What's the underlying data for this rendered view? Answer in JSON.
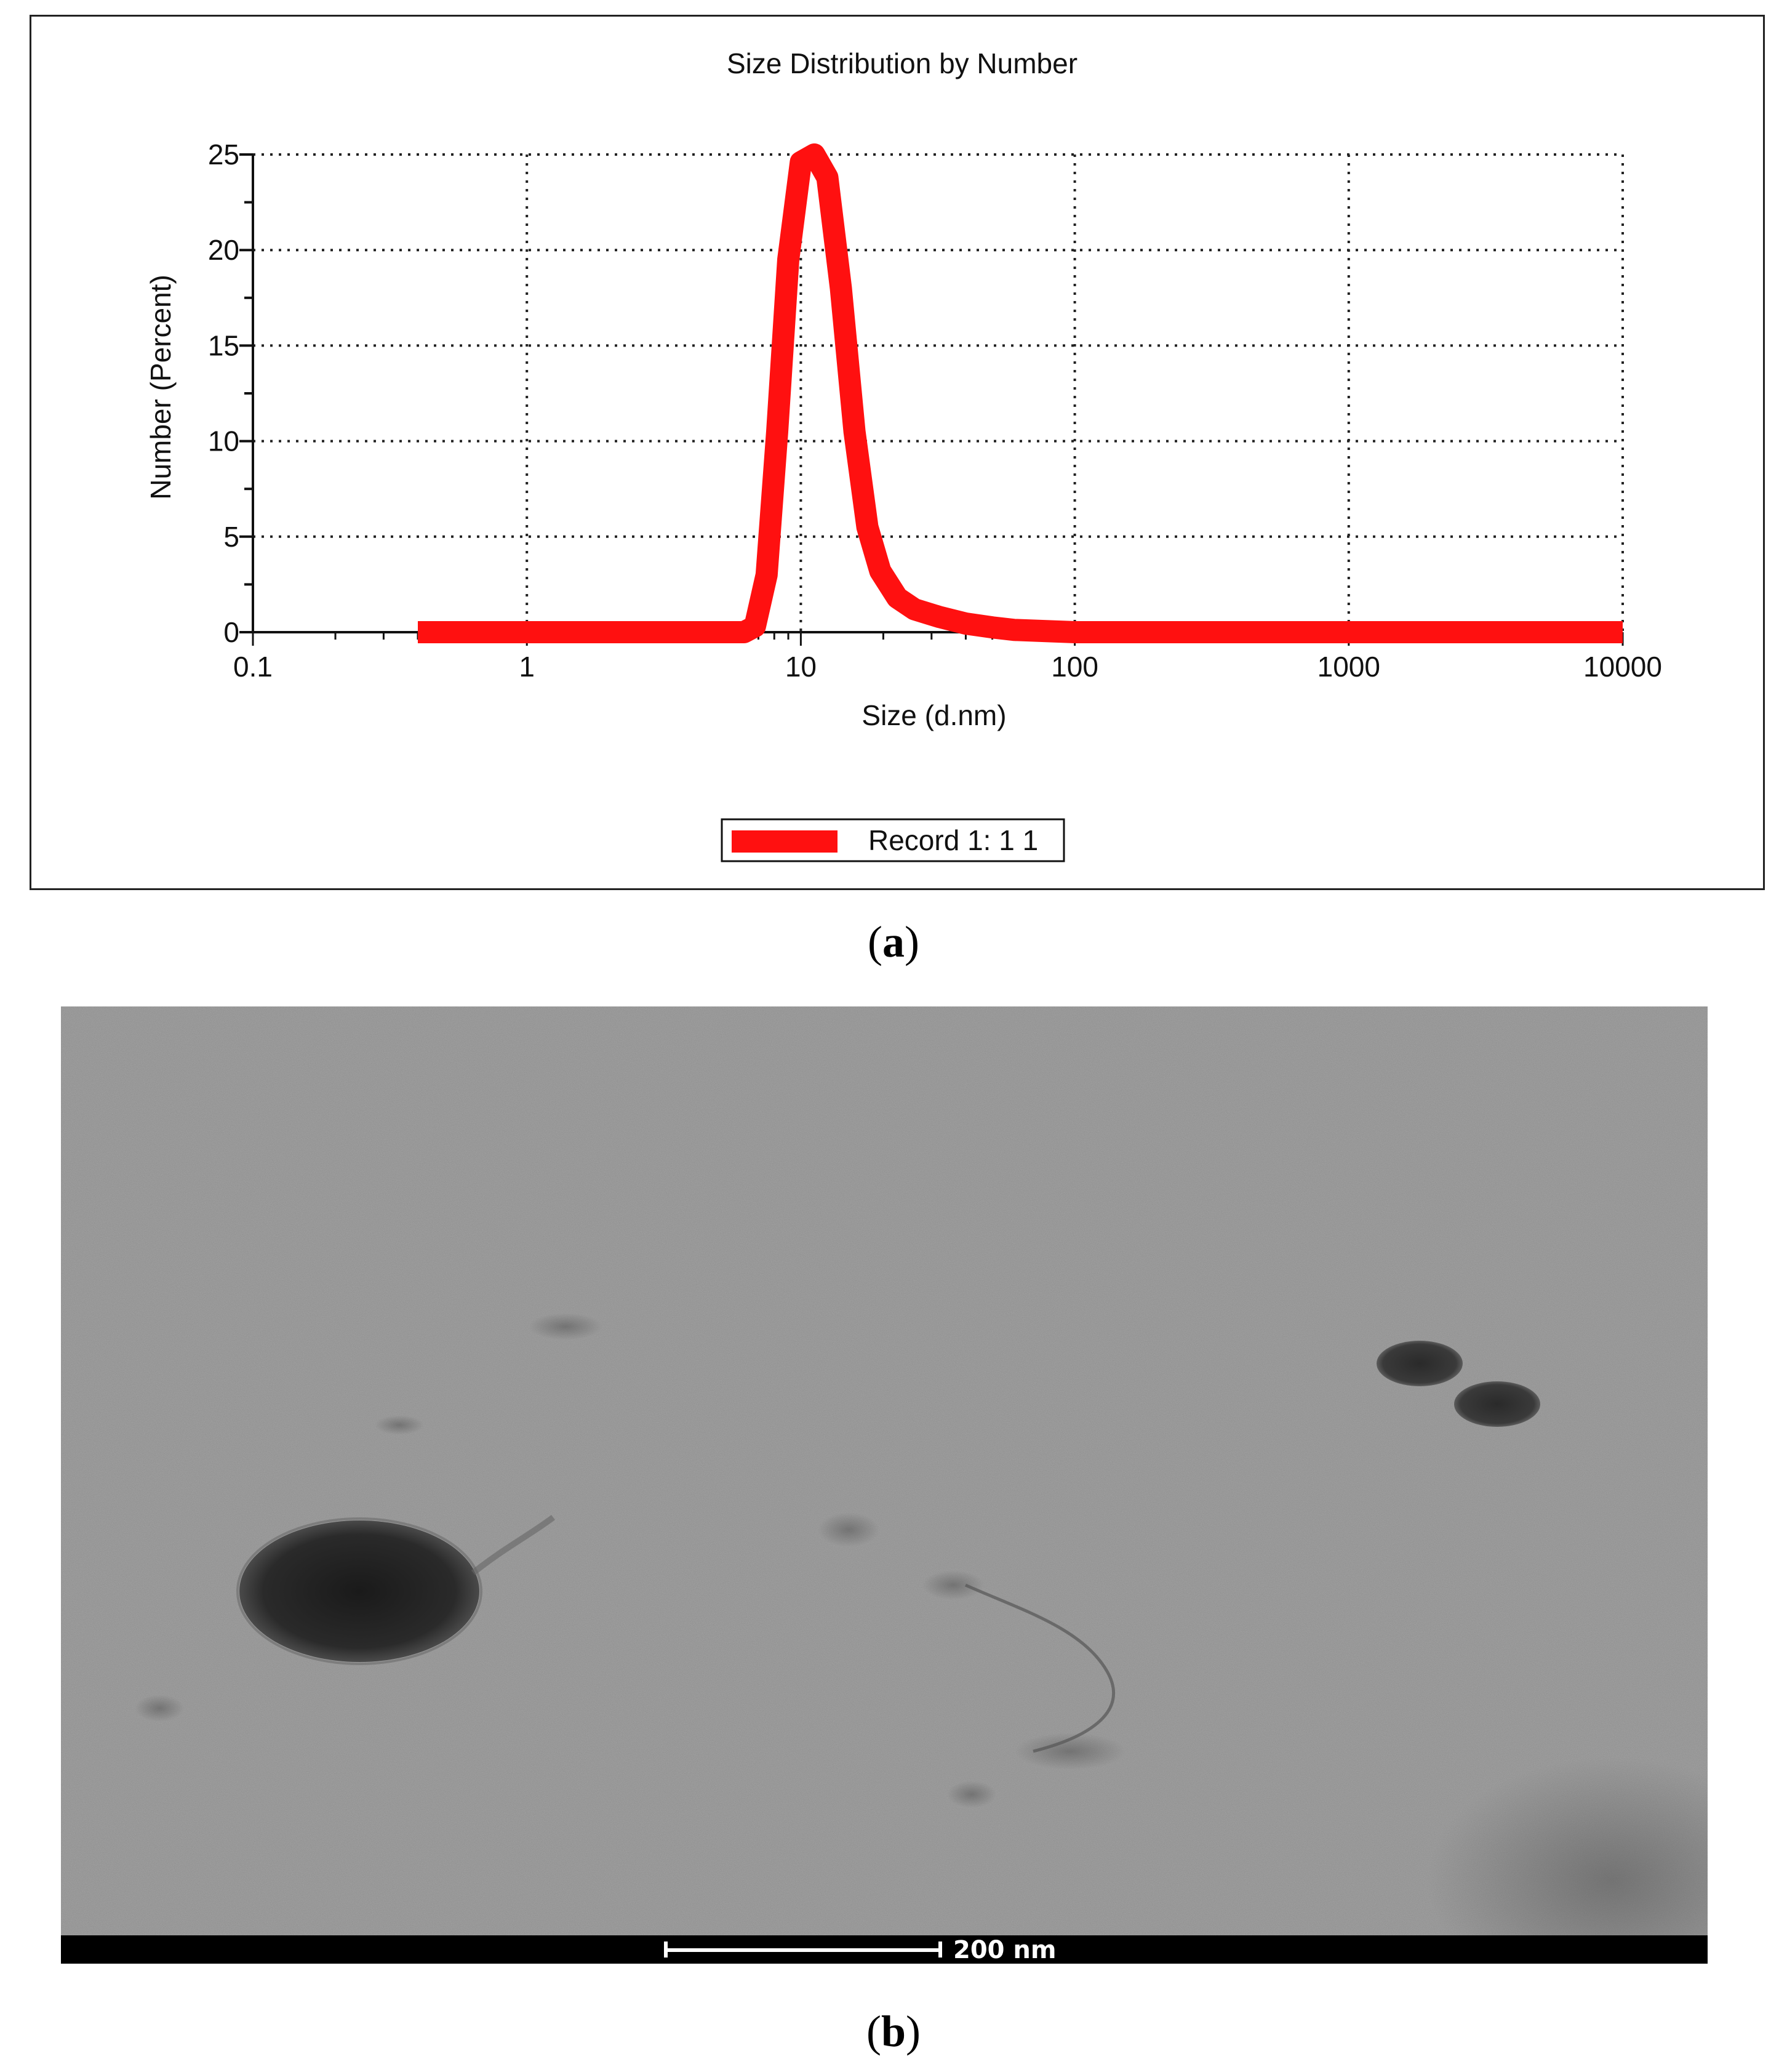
{
  "figure_a": {
    "caption_letter": "a"
  },
  "figure_b": {
    "caption_letter": "b",
    "scale_bar_label": "200 nm"
  },
  "chart_data": {
    "type": "line",
    "title": "Size Distribution by Number",
    "xlabel": "Size (d.nm)",
    "ylabel": "Number (Percent)",
    "x_scale": "log",
    "xlim": [
      0.1,
      10000
    ],
    "ylim": [
      0,
      25
    ],
    "x_ticks": [
      "0.1",
      "1",
      "10",
      "100",
      "1000",
      "10000"
    ],
    "y_ticks": [
      "0",
      "5",
      "10",
      "15",
      "20",
      "25"
    ],
    "grid": true,
    "legend_position": "bottom-center",
    "series": [
      {
        "name": "Record 1: 1 1",
        "color": "#ff1010",
        "x": [
          0.4,
          1,
          3,
          6.2,
          6.8,
          7.5,
          8.2,
          9.0,
          10.0,
          11.2,
          12.5,
          14.0,
          15.7,
          17.5,
          19.5,
          22.5,
          26,
          32,
          40,
          50,
          60,
          80,
          100,
          1000,
          10000
        ],
        "y": [
          0,
          0,
          0,
          0,
          0.3,
          3.0,
          10.5,
          19.5,
          24.6,
          25.0,
          23.8,
          18.0,
          10.5,
          5.5,
          3.2,
          1.8,
          1.2,
          0.8,
          0.45,
          0.25,
          0.12,
          0.05,
          0,
          0,
          0
        ]
      }
    ]
  }
}
